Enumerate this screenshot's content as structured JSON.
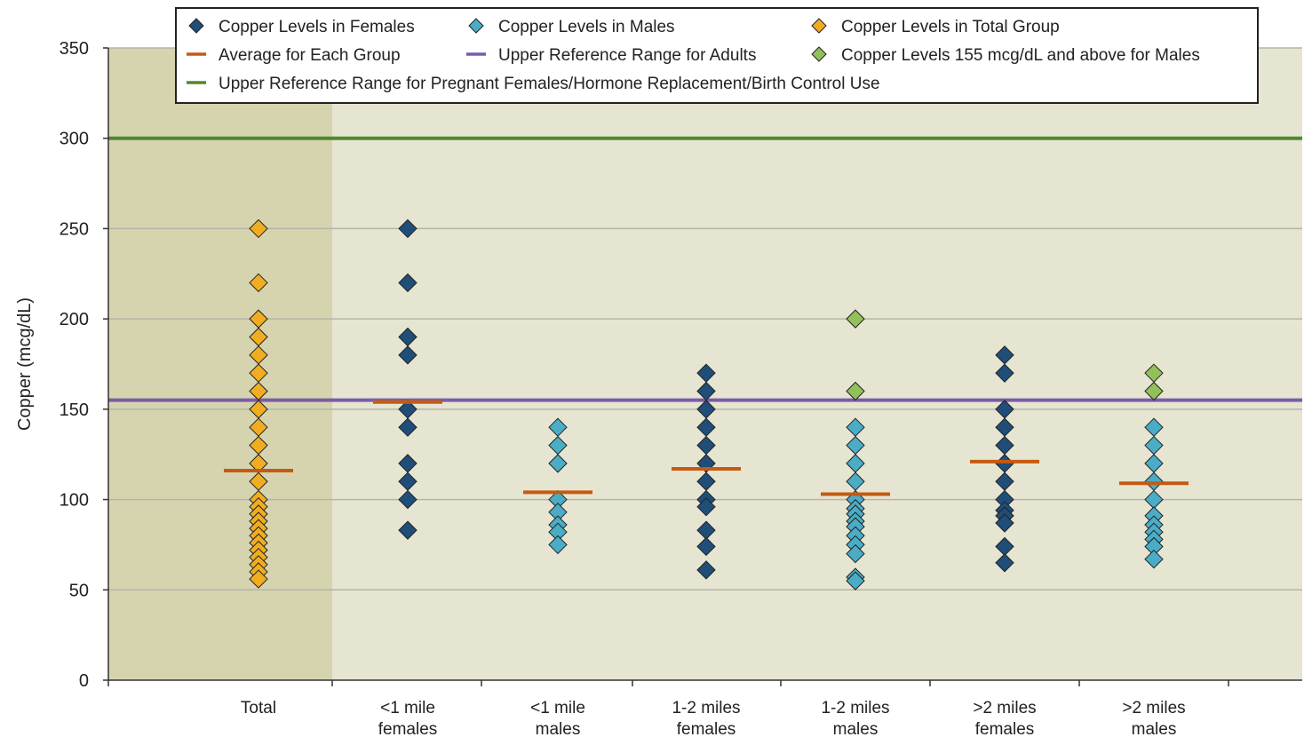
{
  "chart_data": {
    "type": "scatter",
    "ylabel": "Copper (mcg/dL)",
    "xlabel": "",
    "ylim": [
      0,
      350
    ],
    "yticks": [
      0,
      50,
      100,
      150,
      200,
      250,
      300,
      350
    ],
    "grid": true,
    "categories": [
      {
        "line1": "Total",
        "line2": ""
      },
      {
        "line1": "<1 mile",
        "line2": "females"
      },
      {
        "line1": "<1 mile",
        "line2": "males"
      },
      {
        "line1": "1-2 miles",
        "line2": "females"
      },
      {
        "line1": "1-2 miles",
        "line2": "males"
      },
      {
        "line1": ">2 miles",
        "line2": "females"
      },
      {
        "line1": ">2 miles",
        "line2": "males"
      }
    ],
    "legend_placement": "top",
    "legend": [
      {
        "label": "Copper Levels in Females",
        "kind": "diamond",
        "color": "#1f4e79"
      },
      {
        "label": "Copper Levels in Males",
        "kind": "diamond",
        "color": "#4bacc6"
      },
      {
        "label": "Copper Levels in Total Group",
        "kind": "diamond",
        "color": "#f0ad22"
      },
      {
        "label": "Average for Each Group",
        "kind": "line",
        "color": "#c55a11"
      },
      {
        "label": "Upper Reference Range for Adults",
        "kind": "line",
        "color": "#7a5ca8"
      },
      {
        "label": "Copper Levels 155 mcg/dL and above for Males",
        "kind": "diamond",
        "color": "#92c05a"
      },
      {
        "label": "Upper Reference Range for Pregnant Females/Hormone Replacement/Birth Control Use",
        "kind": "line",
        "color": "#4e8a2e"
      }
    ],
    "series": [
      {
        "name": "Copper Levels in Total Group",
        "color": "#f0ad22",
        "points": [
          {
            "x": 0,
            "y": 250
          },
          {
            "x": 0,
            "y": 220
          },
          {
            "x": 0,
            "y": 200
          },
          {
            "x": 0,
            "y": 190
          },
          {
            "x": 0,
            "y": 180
          },
          {
            "x": 0,
            "y": 170
          },
          {
            "x": 0,
            "y": 160
          },
          {
            "x": 0,
            "y": 150
          },
          {
            "x": 0,
            "y": 140
          },
          {
            "x": 0,
            "y": 130
          },
          {
            "x": 0,
            "y": 120
          },
          {
            "x": 0,
            "y": 110
          },
          {
            "x": 0,
            "y": 100
          },
          {
            "x": 0,
            "y": 96
          },
          {
            "x": 0,
            "y": 92
          },
          {
            "x": 0,
            "y": 88
          },
          {
            "x": 0,
            "y": 84
          },
          {
            "x": 0,
            "y": 80
          },
          {
            "x": 0,
            "y": 76
          },
          {
            "x": 0,
            "y": 72
          },
          {
            "x": 0,
            "y": 68
          },
          {
            "x": 0,
            "y": 64
          },
          {
            "x": 0,
            "y": 60
          },
          {
            "x": 0,
            "y": 56
          }
        ]
      },
      {
        "name": "Copper Levels in Females",
        "color": "#1f4e79",
        "points": [
          {
            "x": 1,
            "y": 250
          },
          {
            "x": 1,
            "y": 220
          },
          {
            "x": 1,
            "y": 190
          },
          {
            "x": 1,
            "y": 180
          },
          {
            "x": 1,
            "y": 150
          },
          {
            "x": 1,
            "y": 140
          },
          {
            "x": 1,
            "y": 120
          },
          {
            "x": 1,
            "y": 110
          },
          {
            "x": 1,
            "y": 100
          },
          {
            "x": 1,
            "y": 83
          },
          {
            "x": 3,
            "y": 170
          },
          {
            "x": 3,
            "y": 160
          },
          {
            "x": 3,
            "y": 150
          },
          {
            "x": 3,
            "y": 140
          },
          {
            "x": 3,
            "y": 130
          },
          {
            "x": 3,
            "y": 120
          },
          {
            "x": 3,
            "y": 110
          },
          {
            "x": 3,
            "y": 100
          },
          {
            "x": 3,
            "y": 96
          },
          {
            "x": 3,
            "y": 83
          },
          {
            "x": 3,
            "y": 74
          },
          {
            "x": 3,
            "y": 61
          },
          {
            "x": 5,
            "y": 180
          },
          {
            "x": 5,
            "y": 170
          },
          {
            "x": 5,
            "y": 150
          },
          {
            "x": 5,
            "y": 140
          },
          {
            "x": 5,
            "y": 130
          },
          {
            "x": 5,
            "y": 120
          },
          {
            "x": 5,
            "y": 110
          },
          {
            "x": 5,
            "y": 100
          },
          {
            "x": 5,
            "y": 94
          },
          {
            "x": 5,
            "y": 91
          },
          {
            "x": 5,
            "y": 87
          },
          {
            "x": 5,
            "y": 74
          },
          {
            "x": 5,
            "y": 65
          }
        ]
      },
      {
        "name": "Copper Levels in Males",
        "color": "#4bacc6",
        "points": [
          {
            "x": 2,
            "y": 140
          },
          {
            "x": 2,
            "y": 130
          },
          {
            "x": 2,
            "y": 120
          },
          {
            "x": 2,
            "y": 100
          },
          {
            "x": 2,
            "y": 93
          },
          {
            "x": 2,
            "y": 86
          },
          {
            "x": 2,
            "y": 82
          },
          {
            "x": 2,
            "y": 75
          },
          {
            "x": 4,
            "y": 140
          },
          {
            "x": 4,
            "y": 130
          },
          {
            "x": 4,
            "y": 120
          },
          {
            "x": 4,
            "y": 110
          },
          {
            "x": 4,
            "y": 100
          },
          {
            "x": 4,
            "y": 95
          },
          {
            "x": 4,
            "y": 92
          },
          {
            "x": 4,
            "y": 88
          },
          {
            "x": 4,
            "y": 85
          },
          {
            "x": 4,
            "y": 80
          },
          {
            "x": 4,
            "y": 75
          },
          {
            "x": 4,
            "y": 70
          },
          {
            "x": 4,
            "y": 57
          },
          {
            "x": 4,
            "y": 55
          },
          {
            "x": 6,
            "y": 140
          },
          {
            "x": 6,
            "y": 130
          },
          {
            "x": 6,
            "y": 120
          },
          {
            "x": 6,
            "y": 110
          },
          {
            "x": 6,
            "y": 100
          },
          {
            "x": 6,
            "y": 91
          },
          {
            "x": 6,
            "y": 86
          },
          {
            "x": 6,
            "y": 82
          },
          {
            "x": 6,
            "y": 78
          },
          {
            "x": 6,
            "y": 74
          },
          {
            "x": 6,
            "y": 67
          }
        ]
      },
      {
        "name": "Copper Levels 155 mcg/dL and above for Males",
        "color": "#92c05a",
        "points": [
          {
            "x": 4,
            "y": 200
          },
          {
            "x": 4,
            "y": 160
          },
          {
            "x": 6,
            "y": 170
          },
          {
            "x": 6,
            "y": 160
          }
        ]
      }
    ],
    "averages": [
      {
        "x": 0,
        "y": 116
      },
      {
        "x": 1,
        "y": 154
      },
      {
        "x": 2,
        "y": 104
      },
      {
        "x": 3,
        "y": 117
      },
      {
        "x": 4,
        "y": 103
      },
      {
        "x": 5,
        "y": 121
      },
      {
        "x": 6,
        "y": 109
      }
    ],
    "reference_lines": [
      {
        "name": "Upper Reference Range for Adults",
        "y": 155,
        "color": "#7a5ca8"
      },
      {
        "name": "Upper Reference Range for Pregnant Females/Hormone Replacement/Birth Control Use",
        "y": 300,
        "color": "#4e8a2e"
      }
    ],
    "colors": {
      "plot_bg": "#e6e5d1",
      "total_band_bg": "#d6d3af",
      "gridline": "#b5b5a8",
      "average": "#c55a11",
      "diamond_stroke": "#222222"
    }
  }
}
